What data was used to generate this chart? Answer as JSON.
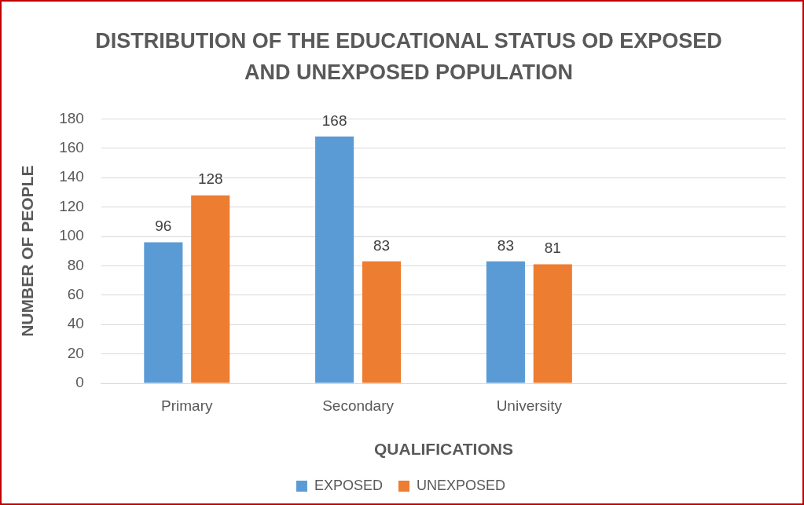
{
  "chart_data": {
    "type": "bar",
    "title": "DISTRIBUTION OF THE EDUCATIONAL STATUS OD EXPOSED AND UNEXPOSED POPULATION",
    "xlabel": "QUALIFICATIONS",
    "ylabel": "NUMBER OF PEOPLE",
    "categories": [
      "Primary",
      "Secondary",
      "University",
      null
    ],
    "series": [
      {
        "name": "EXPOSED",
        "color": "#5b9bd5",
        "values": [
          96,
          168,
          83,
          null
        ]
      },
      {
        "name": "UNEXPOSED",
        "color": "#ed7d31",
        "values": [
          128,
          83,
          81,
          null
        ]
      }
    ],
    "ylim": [
      0,
      180
    ],
    "yticks": [
      0,
      20,
      40,
      60,
      80,
      100,
      120,
      140,
      160,
      180
    ],
    "grid": "y",
    "legend": "bottom",
    "data_labels": true
  }
}
